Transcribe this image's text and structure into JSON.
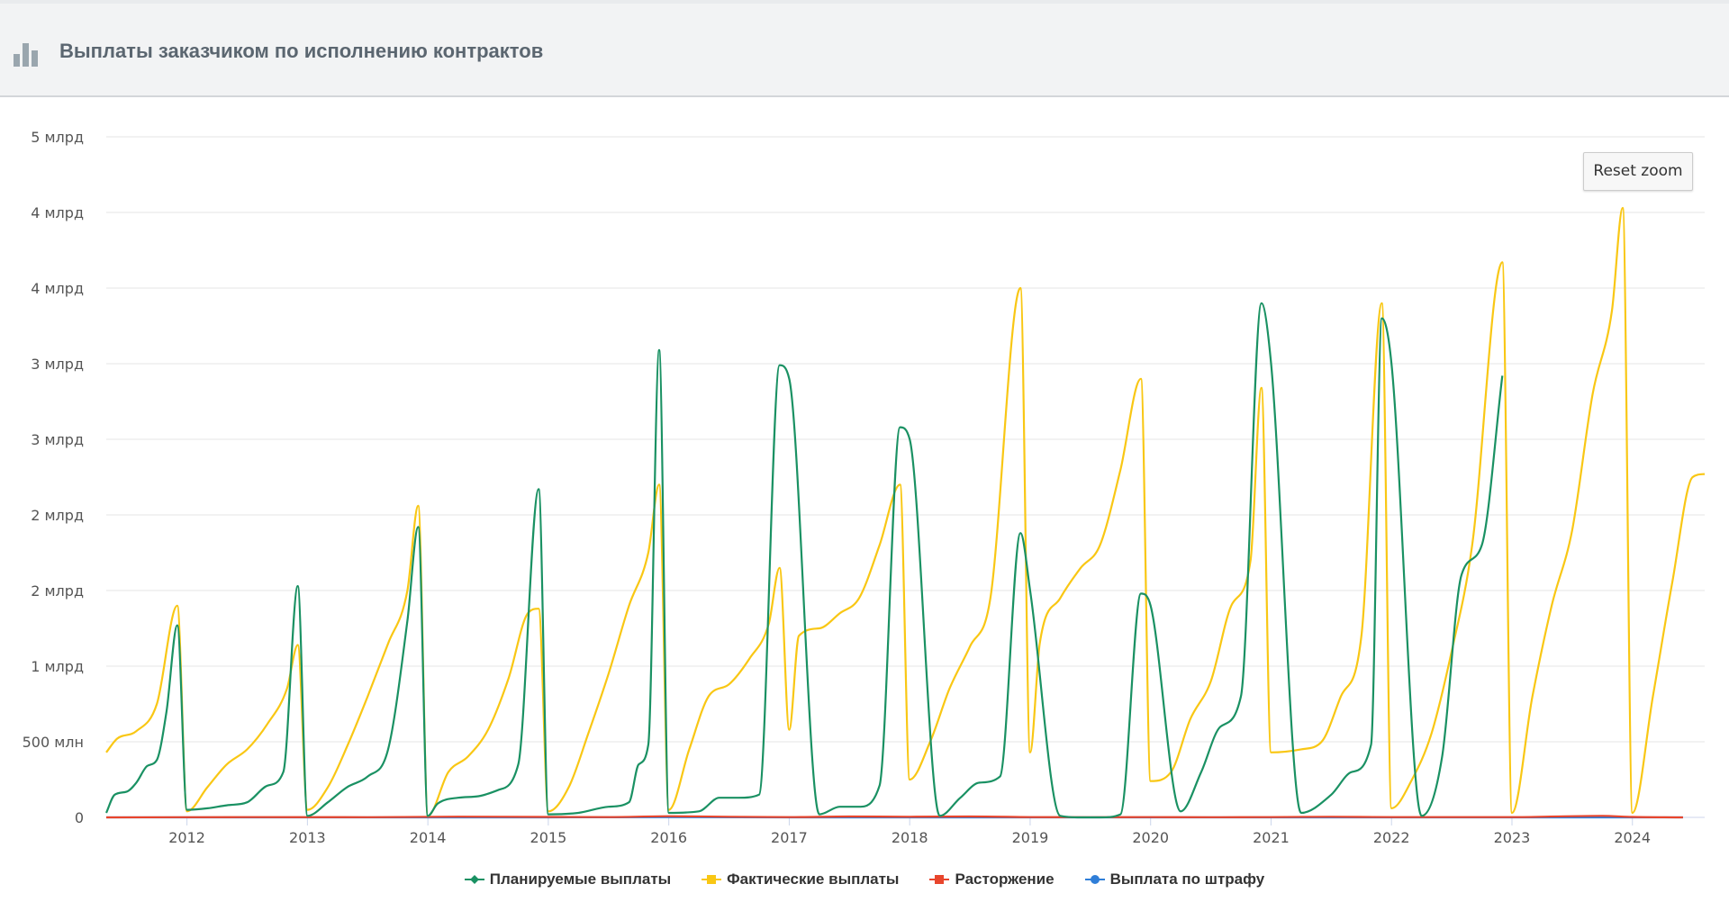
{
  "header": {
    "title": "Выплаты заказчиком по исполнению контрактов",
    "icon": "bar-chart-icon"
  },
  "reset_zoom_label": "Reset zoom",
  "chart_data": {
    "type": "line",
    "title": "Выплаты заказчиком по исполнению контрактов",
    "xlabel": "",
    "ylabel": "",
    "xlim": [
      2011.33,
      2024.6
    ],
    "ylim": [
      0,
      4500000000
    ],
    "y_ticks": [
      {
        "value": 0,
        "label": "0"
      },
      {
        "value": 500000000,
        "label": "500 млн"
      },
      {
        "value": 1000000000,
        "label": "1 млрд"
      },
      {
        "value": 1500000000,
        "label": "2 млрд"
      },
      {
        "value": 2000000000,
        "label": "2 млрд"
      },
      {
        "value": 2500000000,
        "label": "3 млрд"
      },
      {
        "value": 3000000000,
        "label": "3 млрд"
      },
      {
        "value": 3500000000,
        "label": "4 млрд"
      },
      {
        "value": 4000000000,
        "label": "4 млрд"
      },
      {
        "value": 4500000000,
        "label": "5 млрд"
      }
    ],
    "x_ticks": [
      {
        "value": 2012,
        "label": "2012"
      },
      {
        "value": 2013,
        "label": "2013"
      },
      {
        "value": 2014,
        "label": "2014"
      },
      {
        "value": 2015,
        "label": "2015"
      },
      {
        "value": 2016,
        "label": "2016"
      },
      {
        "value": 2017,
        "label": "2017"
      },
      {
        "value": 2018,
        "label": "2018"
      },
      {
        "value": 2019,
        "label": "2019"
      },
      {
        "value": 2020,
        "label": "2020"
      },
      {
        "value": 2021,
        "label": "2021"
      },
      {
        "value": 2022,
        "label": "2022"
      },
      {
        "value": 2023,
        "label": "2023"
      },
      {
        "value": 2024,
        "label": "2024"
      }
    ],
    "grid": true,
    "legend_position": "bottom-center",
    "series": [
      {
        "name": "Планируемые выплаты",
        "color": "#1a9163",
        "marker": "diamond",
        "points": [
          [
            2011.33,
            30000000
          ],
          [
            2011.4,
            150000000
          ],
          [
            2011.5,
            170000000
          ],
          [
            2011.58,
            230000000
          ],
          [
            2011.67,
            340000000
          ],
          [
            2011.75,
            380000000
          ],
          [
            2011.83,
            700000000
          ],
          [
            2011.92,
            1270000000
          ],
          [
            2012.0,
            50000000
          ],
          [
            2012.17,
            60000000
          ],
          [
            2012.33,
            80000000
          ],
          [
            2012.5,
            100000000
          ],
          [
            2012.67,
            210000000
          ],
          [
            2012.8,
            300000000
          ],
          [
            2012.92,
            1530000000
          ],
          [
            2013.0,
            10000000
          ],
          [
            2013.17,
            100000000
          ],
          [
            2013.33,
            200000000
          ],
          [
            2013.5,
            270000000
          ],
          [
            2013.67,
            450000000
          ],
          [
            2013.83,
            1300000000
          ],
          [
            2013.92,
            1920000000
          ],
          [
            2014.0,
            10000000
          ],
          [
            2014.08,
            90000000
          ],
          [
            2014.25,
            130000000
          ],
          [
            2014.42,
            140000000
          ],
          [
            2014.58,
            180000000
          ],
          [
            2014.75,
            350000000
          ],
          [
            2014.92,
            2170000000
          ],
          [
            2015.0,
            20000000
          ],
          [
            2015.25,
            30000000
          ],
          [
            2015.5,
            70000000
          ],
          [
            2015.67,
            100000000
          ],
          [
            2015.75,
            350000000
          ],
          [
            2015.83,
            480000000
          ],
          [
            2015.92,
            3090000000
          ],
          [
            2016.0,
            30000000
          ],
          [
            2016.25,
            40000000
          ],
          [
            2016.42,
            130000000
          ],
          [
            2016.58,
            130000000
          ],
          [
            2016.75,
            150000000
          ],
          [
            2016.92,
            2990000000
          ],
          [
            2017.0,
            2900000000
          ],
          [
            2017.25,
            20000000
          ],
          [
            2017.42,
            70000000
          ],
          [
            2017.58,
            70000000
          ],
          [
            2017.75,
            210000000
          ],
          [
            2017.92,
            2580000000
          ],
          [
            2018.0,
            2500000000
          ],
          [
            2018.25,
            10000000
          ],
          [
            2018.42,
            130000000
          ],
          [
            2018.58,
            230000000
          ],
          [
            2018.75,
            270000000
          ],
          [
            2018.92,
            1880000000
          ],
          [
            2019.0,
            1500000000
          ],
          [
            2019.25,
            10000000
          ],
          [
            2019.42,
            0
          ],
          [
            2019.58,
            0
          ],
          [
            2019.75,
            20000000
          ],
          [
            2019.92,
            1480000000
          ],
          [
            2020.0,
            1400000000
          ],
          [
            2020.25,
            40000000
          ],
          [
            2020.42,
            300000000
          ],
          [
            2020.58,
            600000000
          ],
          [
            2020.75,
            800000000
          ],
          [
            2020.92,
            3400000000
          ],
          [
            2021.0,
            3000000000
          ],
          [
            2021.25,
            30000000
          ],
          [
            2021.5,
            150000000
          ],
          [
            2021.67,
            300000000
          ],
          [
            2021.83,
            480000000
          ],
          [
            2021.92,
            3300000000
          ],
          [
            2022.0,
            3000000000
          ],
          [
            2022.25,
            10000000
          ],
          [
            2022.42,
            400000000
          ],
          [
            2022.58,
            1600000000
          ],
          [
            2022.75,
            1800000000
          ],
          [
            2022.92,
            2920000000
          ]
        ]
      },
      {
        "name": "Фактические выплаты",
        "color": "#f9c714",
        "marker": "square",
        "points": [
          [
            2011.33,
            430000000
          ],
          [
            2011.42,
            520000000
          ],
          [
            2011.58,
            570000000
          ],
          [
            2011.75,
            750000000
          ],
          [
            2011.92,
            1400000000
          ],
          [
            2012.0,
            40000000
          ],
          [
            2012.17,
            200000000
          ],
          [
            2012.33,
            350000000
          ],
          [
            2012.5,
            450000000
          ],
          [
            2012.67,
            620000000
          ],
          [
            2012.83,
            850000000
          ],
          [
            2012.92,
            1140000000
          ],
          [
            2013.0,
            50000000
          ],
          [
            2013.17,
            200000000
          ],
          [
            2013.33,
            470000000
          ],
          [
            2013.5,
            800000000
          ],
          [
            2013.67,
            1150000000
          ],
          [
            2013.83,
            1500000000
          ],
          [
            2013.92,
            2060000000
          ],
          [
            2014.0,
            10000000
          ],
          [
            2014.17,
            300000000
          ],
          [
            2014.33,
            400000000
          ],
          [
            2014.5,
            580000000
          ],
          [
            2014.67,
            920000000
          ],
          [
            2014.83,
            1350000000
          ],
          [
            2014.92,
            1380000000
          ],
          [
            2015.0,
            40000000
          ],
          [
            2015.17,
            200000000
          ],
          [
            2015.33,
            550000000
          ],
          [
            2015.5,
            950000000
          ],
          [
            2015.67,
            1400000000
          ],
          [
            2015.83,
            1750000000
          ],
          [
            2015.92,
            2200000000
          ],
          [
            2016.0,
            50000000
          ],
          [
            2016.17,
            450000000
          ],
          [
            2016.33,
            800000000
          ],
          [
            2016.5,
            880000000
          ],
          [
            2016.67,
            1050000000
          ],
          [
            2016.83,
            1280000000
          ],
          [
            2016.92,
            1650000000
          ],
          [
            2017.0,
            580000000
          ],
          [
            2017.08,
            1200000000
          ],
          [
            2017.25,
            1250000000
          ],
          [
            2017.42,
            1350000000
          ],
          [
            2017.58,
            1450000000
          ],
          [
            2017.75,
            1800000000
          ],
          [
            2017.92,
            2200000000
          ],
          [
            2018.0,
            250000000
          ],
          [
            2018.17,
            500000000
          ],
          [
            2018.33,
            850000000
          ],
          [
            2018.5,
            1130000000
          ],
          [
            2018.67,
            1450000000
          ],
          [
            2018.92,
            3500000000
          ],
          [
            2019.0,
            430000000
          ],
          [
            2019.08,
            1150000000
          ],
          [
            2019.25,
            1450000000
          ],
          [
            2019.42,
            1650000000
          ],
          [
            2019.58,
            1800000000
          ],
          [
            2019.75,
            2300000000
          ],
          [
            2019.92,
            2900000000
          ],
          [
            2020.0,
            240000000
          ],
          [
            2020.17,
            300000000
          ],
          [
            2020.33,
            650000000
          ],
          [
            2020.5,
            900000000
          ],
          [
            2020.67,
            1400000000
          ],
          [
            2020.83,
            1700000000
          ],
          [
            2020.92,
            2840000000
          ],
          [
            2021.0,
            430000000
          ],
          [
            2021.25,
            450000000
          ],
          [
            2021.42,
            500000000
          ],
          [
            2021.58,
            800000000
          ],
          [
            2021.75,
            1200000000
          ],
          [
            2021.92,
            3400000000
          ],
          [
            2022.0,
            60000000
          ],
          [
            2022.17,
            250000000
          ],
          [
            2022.33,
            550000000
          ],
          [
            2022.5,
            1100000000
          ],
          [
            2022.67,
            1800000000
          ],
          [
            2022.92,
            3670000000
          ],
          [
            2023.0,
            30000000
          ],
          [
            2023.17,
            800000000
          ],
          [
            2023.33,
            1400000000
          ],
          [
            2023.5,
            1900000000
          ],
          [
            2023.67,
            2800000000
          ],
          [
            2023.83,
            3350000000
          ],
          [
            2023.92,
            4030000000
          ],
          [
            2024.0,
            30000000
          ],
          [
            2024.17,
            800000000
          ],
          [
            2024.33,
            1550000000
          ],
          [
            2024.5,
            2250000000
          ],
          [
            2024.6,
            2270000000
          ]
        ]
      },
      {
        "name": "Расторжение",
        "color": "#e8452c",
        "marker": "square",
        "points": [
          [
            2011.33,
            0
          ],
          [
            2012.5,
            2000000
          ],
          [
            2013.5,
            1000000
          ],
          [
            2014.25,
            5000000
          ],
          [
            2015.0,
            3000000
          ],
          [
            2015.5,
            2000000
          ],
          [
            2016.0,
            8000000
          ],
          [
            2016.5,
            4000000
          ],
          [
            2017.0,
            2000000
          ],
          [
            2017.5,
            6000000
          ],
          [
            2018.0,
            4000000
          ],
          [
            2018.5,
            6000000
          ],
          [
            2019.0,
            2000000
          ],
          [
            2019.5,
            1000000
          ],
          [
            2020.0,
            2000000
          ],
          [
            2020.5,
            1000000
          ],
          [
            2021.0,
            2000000
          ],
          [
            2021.5,
            4000000
          ],
          [
            2022.0,
            2000000
          ],
          [
            2022.5,
            2000000
          ],
          [
            2023.0,
            2000000
          ],
          [
            2023.5,
            8000000
          ],
          [
            2023.75,
            10000000
          ],
          [
            2024.0,
            3000000
          ],
          [
            2024.42,
            0
          ]
        ]
      },
      {
        "name": "Выплата по штрафу",
        "color": "#2f7ed8",
        "marker": "circle",
        "points": [
          [
            2011.33,
            0
          ],
          [
            2013.0,
            0
          ],
          [
            2015.0,
            0
          ],
          [
            2016.0,
            1000000
          ],
          [
            2017.0,
            0
          ],
          [
            2019.0,
            0
          ],
          [
            2021.0,
            0
          ],
          [
            2023.0,
            0
          ],
          [
            2024.42,
            0
          ]
        ]
      }
    ]
  }
}
